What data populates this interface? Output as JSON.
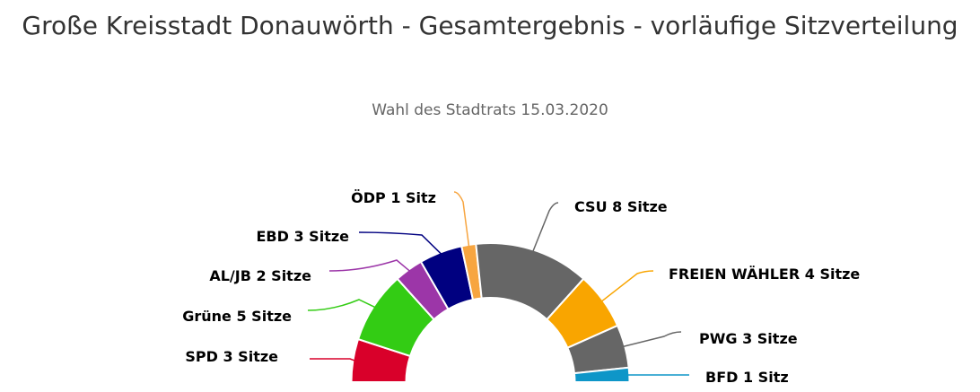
{
  "chart_data": {
    "type": "pie",
    "variant": "semi-donut (parliament seats)",
    "title": "Große Kreisstadt Donauwörth - Gesamtergebnis - vorläufige Sitzverteilung",
    "subtitle": "Wahl des Stadtrats 15.03.2020",
    "unit_singular": "Sitz",
    "unit_plural": "Sitze",
    "legend": "none (data labels with connectors)",
    "series": [
      {
        "name": "SPD",
        "value": 3,
        "color": "#d9002a"
      },
      {
        "name": "Grüne",
        "value": 5,
        "color": "#33cc14"
      },
      {
        "name": "AL/JB",
        "value": 2,
        "color": "#9c36a8"
      },
      {
        "name": "EBD",
        "value": 3,
        "color": "#000080"
      },
      {
        "name": "ÖDP",
        "value": 1,
        "color": "#f7a540"
      },
      {
        "name": "CSU",
        "value": 8,
        "color": "#666666"
      },
      {
        "name": "FREIEN WÄHLER",
        "value": 4,
        "color": "#f9a500"
      },
      {
        "name": "PWG",
        "value": 3,
        "color": "#666666"
      },
      {
        "name": "BFD",
        "value": 1,
        "color": "#0e96c8"
      }
    ]
  }
}
